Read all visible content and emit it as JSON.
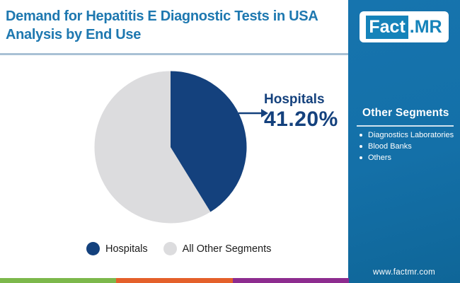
{
  "title": {
    "line1": "Demand for Hepatitis E Diagnostic Tests in USA",
    "line2": "Analysis by End Use"
  },
  "logo": {
    "part1": "Fact",
    "part2": ".MR"
  },
  "chart_data": {
    "type": "pie",
    "title": "Demand for Hepatitis E Diagnostic Tests in USA Analysis by End Use",
    "segments": [
      {
        "label": "Hospitals",
        "value": 41.2,
        "color": "#14417D"
      },
      {
        "label": "All Other Segments",
        "value": 58.8,
        "color": "#DCDCDE"
      }
    ],
    "start_angle_deg": 0,
    "direction": "clockwise",
    "callout": {
      "label": "Hospitals",
      "value_text": "41.20%"
    },
    "legend_position": "bottom"
  },
  "sidebar": {
    "heading": "Other Segments",
    "items": [
      "Diagnostics Laboratories",
      "Blood Banks",
      "Others"
    ],
    "website": "www.factmr.com"
  },
  "colors": {
    "title_blue": "#1E78B0",
    "navy": "#14417D",
    "gray_slice": "#DCDCDE",
    "panel_blue": "#1470A8",
    "logo_blue": "#1583BA",
    "divider": "#A9C1D5",
    "stripe_green": "#7CB84B",
    "stripe_orange": "#E4602A",
    "stripe_purple": "#8D2C8F"
  }
}
